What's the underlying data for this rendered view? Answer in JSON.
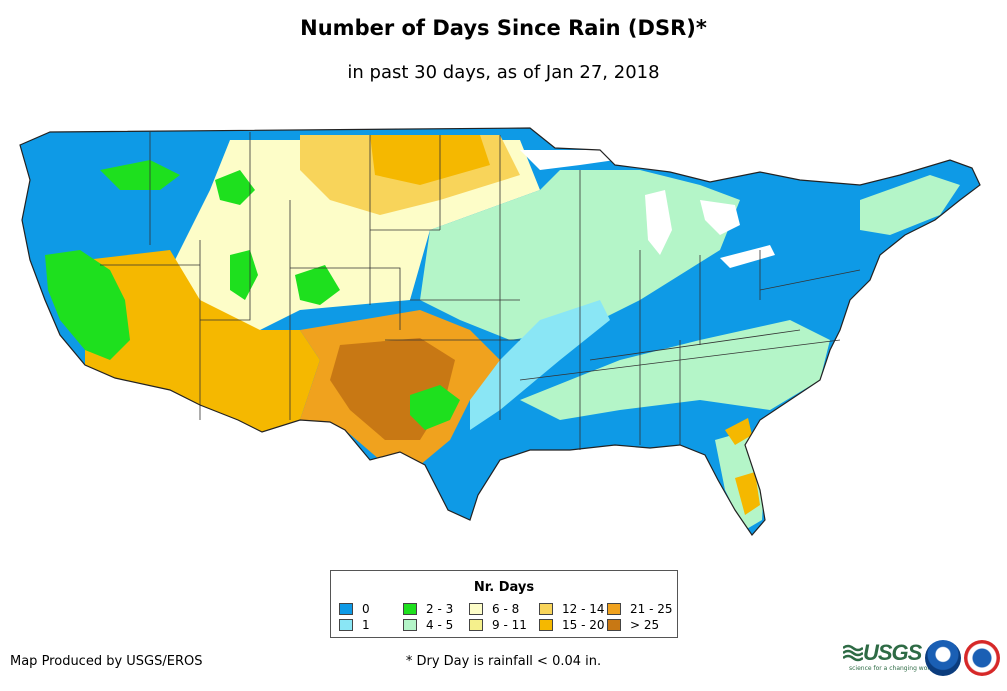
{
  "header": {
    "title": "Number of Days Since Rain (DSR)*",
    "subtitle": "in past 30 days, as of Jan 27, 2018"
  },
  "legend": {
    "title": "Nr. Days",
    "items": [
      {
        "label": "0",
        "color": "#0e9ae6"
      },
      {
        "label": "1",
        "color": "#8ae6f5"
      },
      {
        "label": "2 - 3",
        "color": "#1ee01e"
      },
      {
        "label": "4 - 5",
        "color": "#b4f5c8"
      },
      {
        "label": "6 - 8",
        "color": "#fdfdc8"
      },
      {
        "label": "9 - 11",
        "color": "#f5f08c"
      },
      {
        "label": "12 - 14",
        "color": "#f8d45a"
      },
      {
        "label": "15 - 20",
        "color": "#f5b800"
      },
      {
        "label": "21 - 25",
        "color": "#f0a21e"
      },
      {
        "label": "> 25",
        "color": "#c87814"
      }
    ]
  },
  "footer": {
    "credit": "Map Produced by USGS/EROS",
    "footnote": "* Dry Day is rainfall < 0.04 in.",
    "usgs_logo": "USGS",
    "usgs_tagline": "science for a changing world"
  },
  "icons": [
    "usgs-logo-icon",
    "noaa-logo-icon",
    "nws-logo-icon"
  ]
}
